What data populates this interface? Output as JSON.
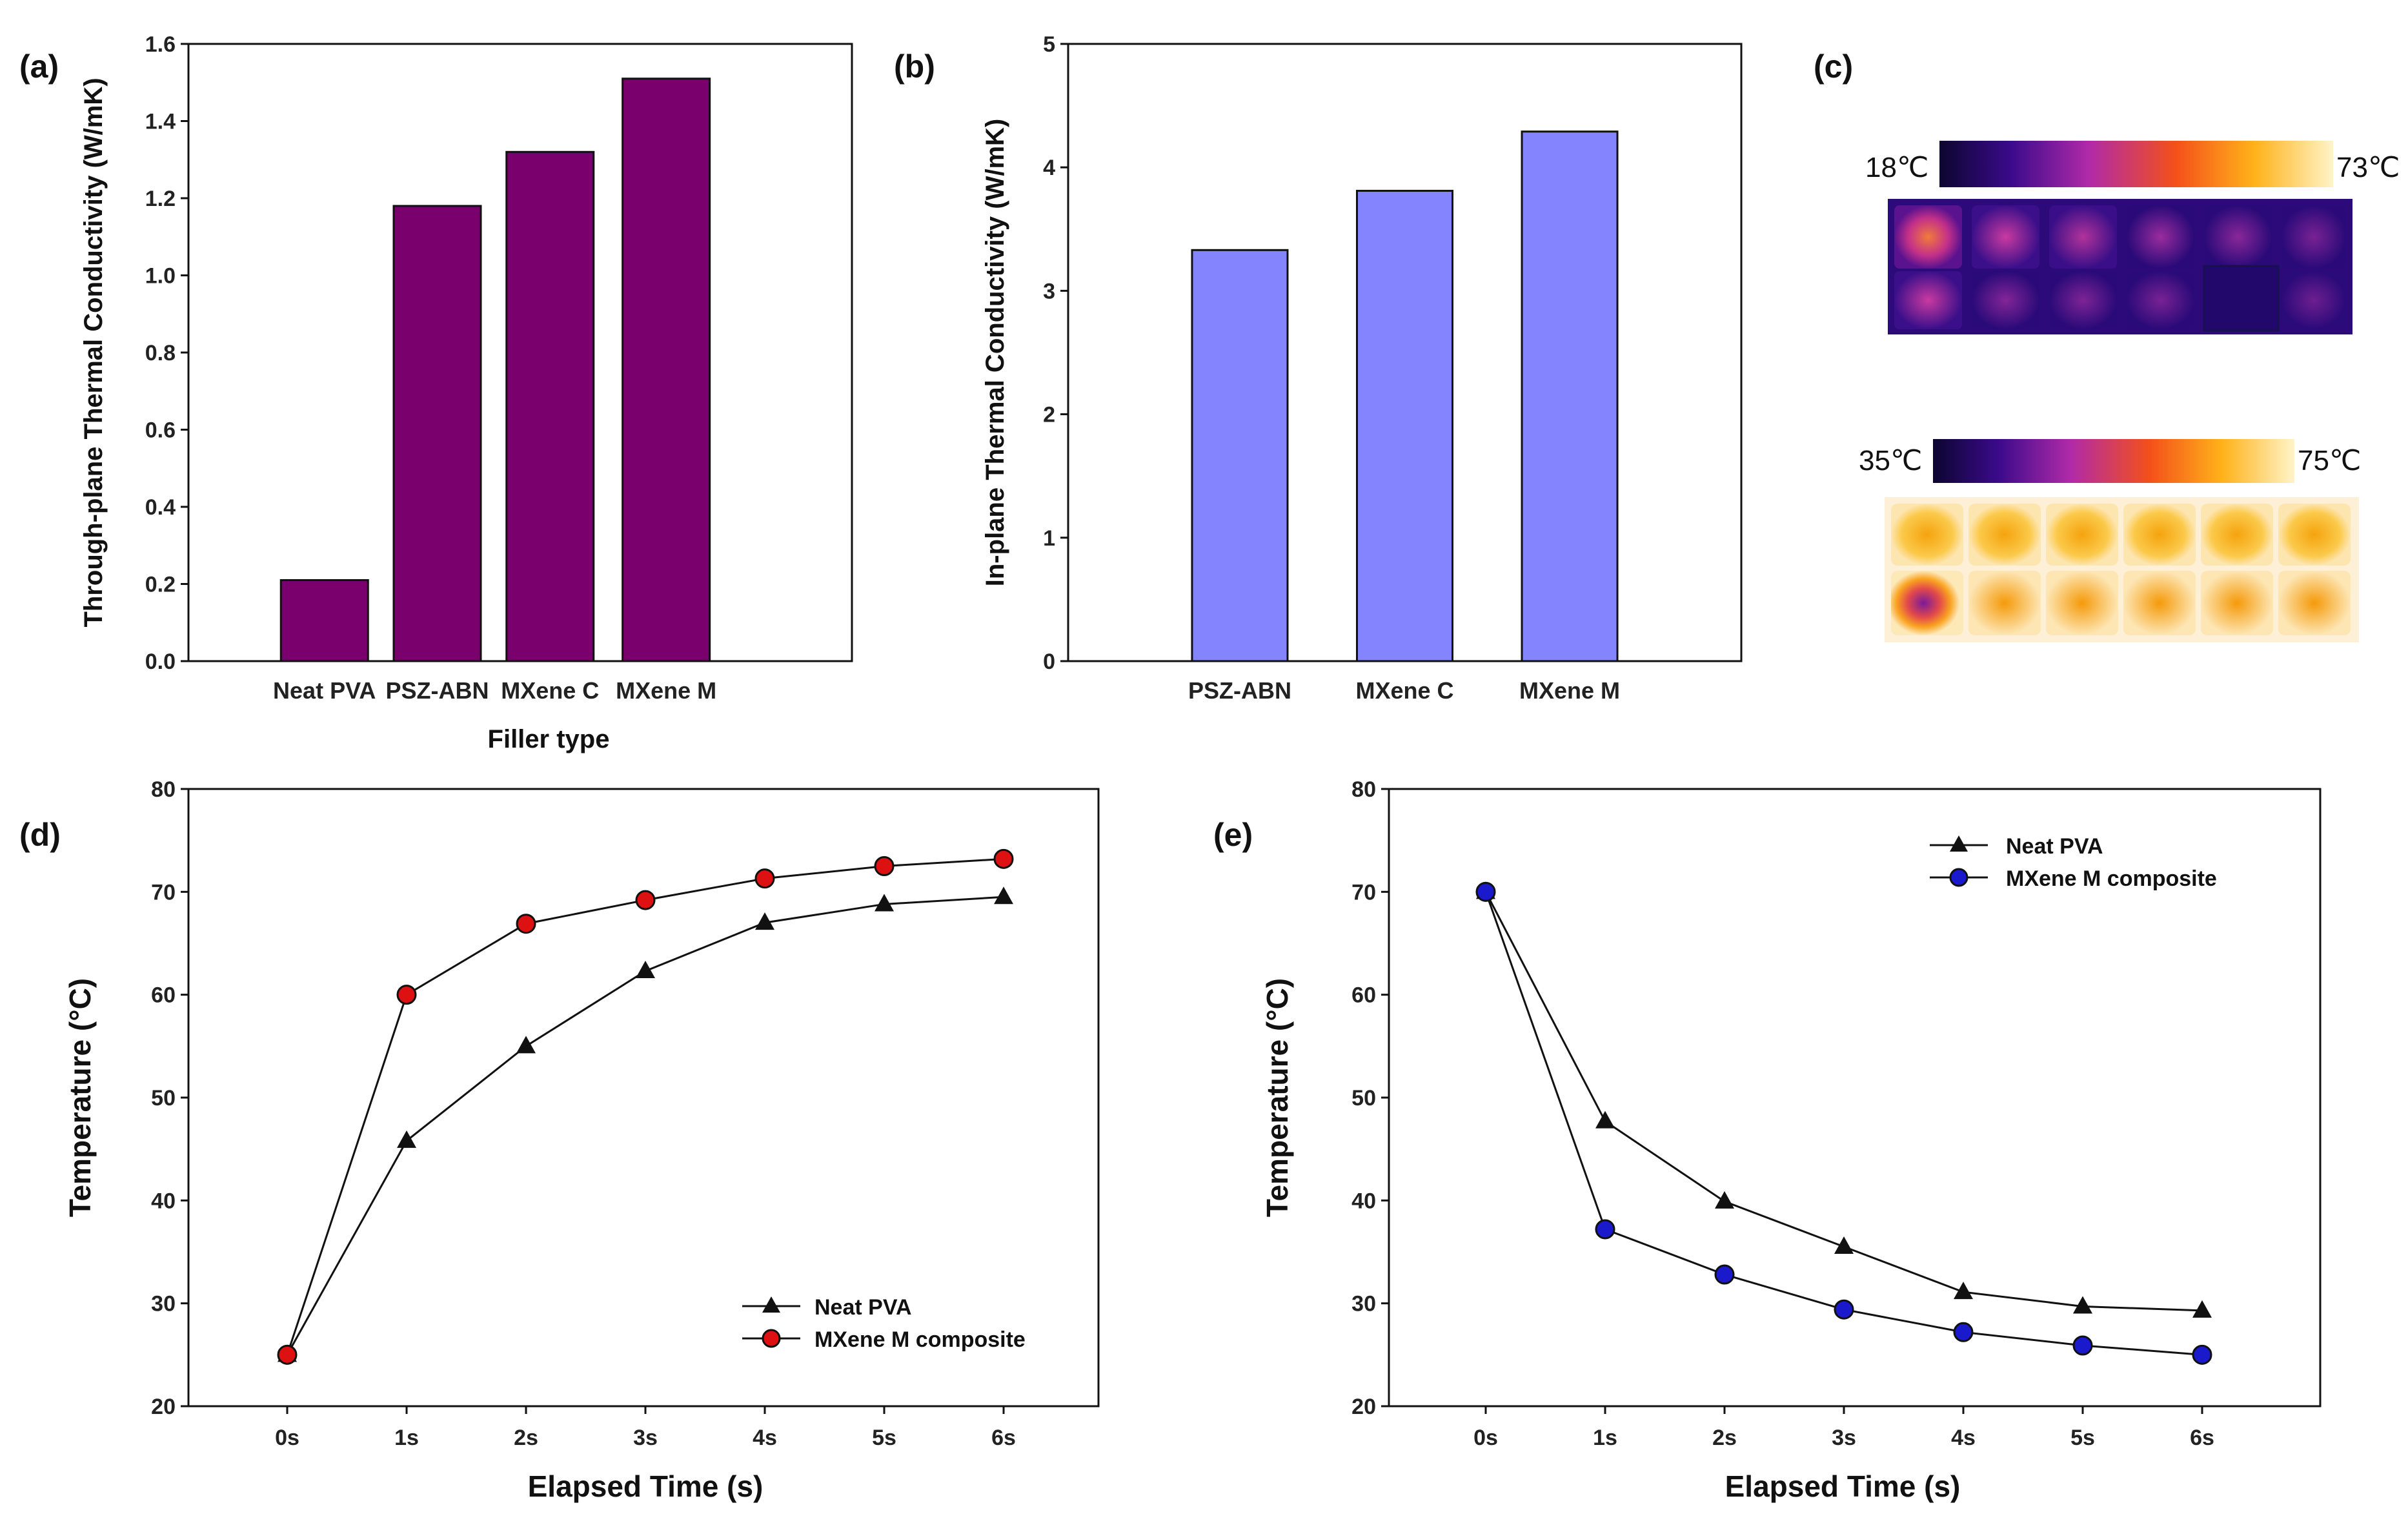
{
  "figure_labels": {
    "a": "(a)",
    "b": "(b)",
    "c": "(c)",
    "d": "(d)",
    "e": "(e)"
  },
  "colors": {
    "bar_a": "#7a006e",
    "bar_b": "#8484ff",
    "marker_red": "#dd1111",
    "marker_blue": "#1a1acc",
    "ink": "#111111"
  },
  "chart_data": [
    {
      "id": "a",
      "type": "bar",
      "categories": [
        "Neat PVA",
        "PSZ-ABN",
        "MXene C",
        "MXene M"
      ],
      "values": [
        0.21,
        1.18,
        1.32,
        1.51
      ],
      "xlabel": "Filler type",
      "ylabel": "Through-plane Thermal Conductivity (W/mK)",
      "ylim": [
        0,
        1.6
      ],
      "yticks": [
        "0.0",
        "0.2",
        "0.4",
        "0.6",
        "0.8",
        "1.0",
        "1.2",
        "1.4",
        "1.6"
      ]
    },
    {
      "id": "b",
      "type": "bar",
      "categories": [
        "PSZ-ABN",
        "MXene C",
        "MXene M"
      ],
      "values": [
        3.33,
        3.81,
        4.29
      ],
      "xlabel": "",
      "ylabel": "In-plane Thermal Conductivity (W/mK)",
      "ylim": [
        0,
        5
      ],
      "yticks": [
        "0",
        "1",
        "2",
        "3",
        "4",
        "5"
      ]
    },
    {
      "id": "d",
      "type": "line",
      "x": [
        "0s",
        "1s",
        "2s",
        "3s",
        "4s",
        "5s",
        "6s"
      ],
      "series": [
        {
          "name": "Neat PVA",
          "marker": "triangle",
          "values": [
            25,
            45.8,
            55,
            62.3,
            67,
            68.8,
            69.5
          ]
        },
        {
          "name": "MXene M composite",
          "marker": "circle-red",
          "values": [
            25,
            60,
            66.9,
            69.2,
            71.3,
            72.5,
            73.2
          ]
        }
      ],
      "xlabel": "Elapsed Time (s)",
      "ylabel": "Temperature (°C)",
      "ylim": [
        20,
        80
      ],
      "yticks": [
        "20",
        "30",
        "40",
        "50",
        "60",
        "70",
        "80"
      ],
      "legend_position": "bottom-right"
    },
    {
      "id": "e",
      "type": "line",
      "x": [
        "0s",
        "1s",
        "2s",
        "3s",
        "4s",
        "5s",
        "6s"
      ],
      "series": [
        {
          "name": "Neat PVA",
          "marker": "triangle",
          "values": [
            70,
            47.7,
            39.9,
            35.5,
            31.1,
            29.7,
            29.3
          ]
        },
        {
          "name": "MXene M composite",
          "marker": "circle-blue",
          "values": [
            70,
            37.2,
            32.8,
            29.4,
            27.2,
            25.9,
            25
          ]
        }
      ],
      "xlabel": "Elapsed Time (s)",
      "ylabel": "Temperature (°C)",
      "ylim": [
        20,
        80
      ],
      "yticks": [
        "20",
        "30",
        "40",
        "50",
        "60",
        "70",
        "80"
      ],
      "legend_position": "top-left"
    }
  ],
  "thermal_images": {
    "top": {
      "min_label": "18℃",
      "max_label": "73℃"
    },
    "bottom": {
      "min_label": "35℃",
      "max_label": "75℃"
    }
  }
}
